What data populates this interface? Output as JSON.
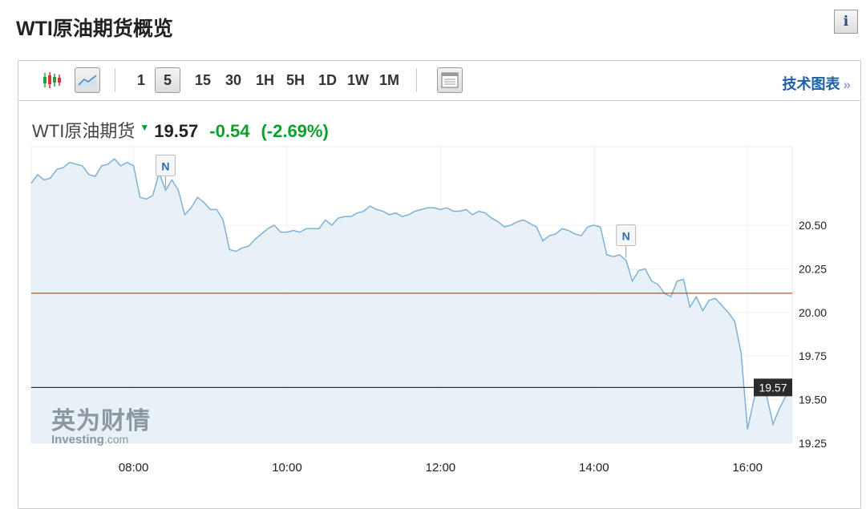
{
  "header": {
    "title": "WTI原油期货概览",
    "info_icon": "info-icon"
  },
  "toolbar": {
    "chart_types": [
      {
        "icon": "candlestick-icon",
        "active": false
      },
      {
        "icon": "line-chart-icon",
        "active": true
      }
    ],
    "intervals": [
      "1",
      "5",
      "15",
      "30",
      "1H",
      "5H",
      "1D",
      "1W",
      "1M"
    ],
    "active_interval": "5",
    "settings_icon": "layout-icon",
    "tech_chart_label": "技术图表",
    "tech_chart_arrow": "»"
  },
  "quote": {
    "name": "WTI原油期货",
    "direction_icon": "down-arrow-icon",
    "price": "19.57",
    "change": "-0.54",
    "change_pct": "(-2.69%)"
  },
  "watermark": {
    "cn": "英为财情",
    "en": "Investing",
    ".com": ".com"
  },
  "colors": {
    "line": "#7fb0d8",
    "fill": "#e4eef5",
    "prev_close": "#c0392b",
    "last_price": "#333333",
    "up_down": "#0aa02a",
    "link": "#1e5fa6"
  },
  "chart_data": {
    "type": "area",
    "x_start": "06:40",
    "x_end": "16:35",
    "interval_min": 5,
    "xticks": [
      "08:00",
      "10:00",
      "12:00",
      "14:00",
      "16:00"
    ],
    "yticks": [
      "20.50",
      "20.25",
      "20.00",
      "19.75",
      "19.50",
      "19.25"
    ],
    "ylim": [
      19.25,
      20.95
    ],
    "grid": true,
    "prev_close_line": 20.11,
    "last_price": 19.57,
    "last_price_label": "19.57",
    "news_markers": [
      {
        "time": "08:25",
        "label": "N"
      },
      {
        "time": "14:25",
        "label": "N"
      }
    ],
    "values": [
      20.74,
      20.79,
      20.76,
      20.77,
      20.82,
      20.83,
      20.86,
      20.85,
      20.84,
      20.79,
      20.78,
      20.84,
      20.85,
      20.88,
      20.84,
      20.86,
      20.84,
      20.66,
      20.65,
      20.67,
      20.8,
      20.7,
      20.76,
      20.7,
      20.56,
      20.6,
      20.66,
      20.63,
      20.59,
      20.59,
      20.53,
      20.36,
      20.35,
      20.37,
      20.38,
      20.42,
      20.45,
      20.48,
      20.5,
      20.46,
      20.46,
      20.47,
      20.46,
      20.48,
      20.48,
      20.48,
      20.53,
      20.5,
      20.54,
      20.55,
      20.55,
      20.57,
      20.58,
      20.61,
      20.59,
      20.58,
      20.56,
      20.57,
      20.55,
      20.56,
      20.58,
      20.59,
      20.6,
      20.6,
      20.59,
      20.6,
      20.58,
      20.58,
      20.59,
      20.56,
      20.58,
      20.57,
      20.54,
      20.52,
      20.49,
      20.5,
      20.52,
      20.53,
      20.51,
      20.49,
      20.41,
      20.44,
      20.45,
      20.48,
      20.47,
      20.45,
      20.44,
      20.49,
      20.5,
      20.49,
      20.33,
      20.32,
      20.33,
      20.3,
      20.18,
      20.24,
      20.25,
      20.18,
      20.16,
      20.11,
      20.09,
      20.18,
      20.19,
      20.03,
      20.09,
      20.01,
      20.07,
      20.08,
      20.04,
      20.0,
      19.95,
      19.77,
      19.33,
      19.5,
      19.61,
      19.52,
      19.36,
      19.45,
      19.52,
      19.57
    ]
  }
}
